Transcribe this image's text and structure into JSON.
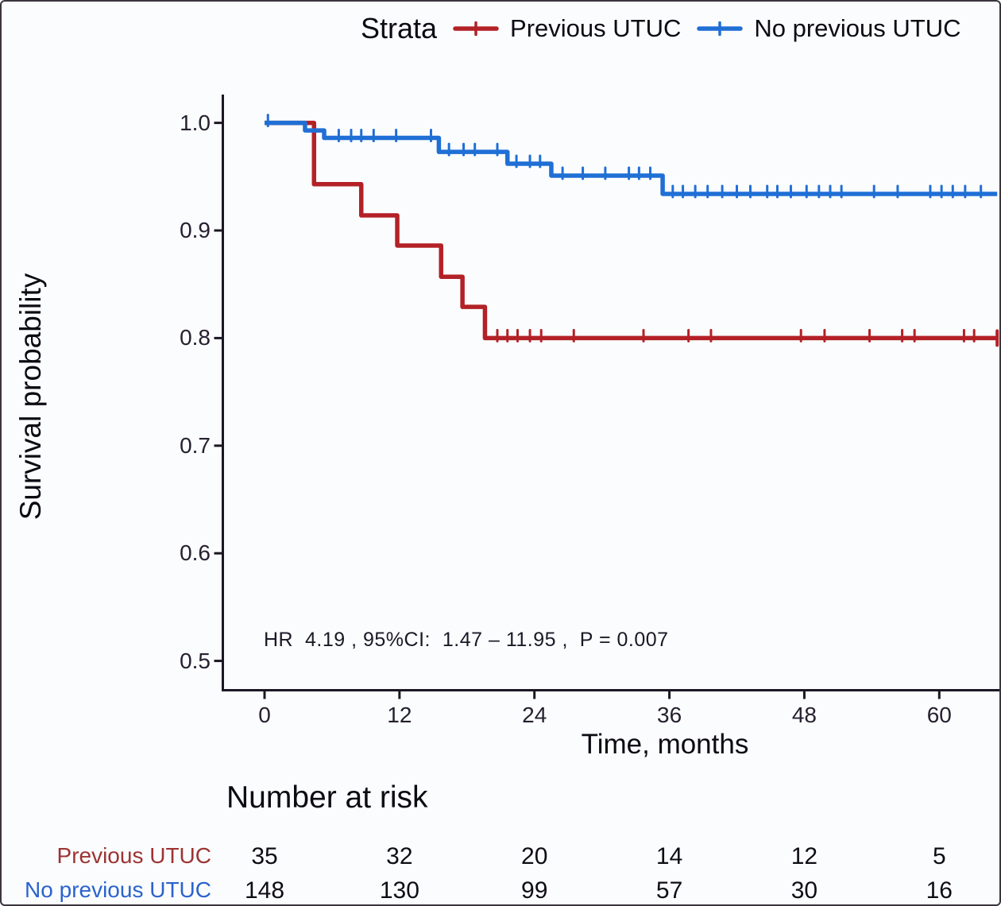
{
  "figure": {
    "background": "#fbfcfe",
    "border_color": "#3a353e"
  },
  "legend": {
    "title": "Strata",
    "items": [
      {
        "label": "Previous UTUC",
        "color": "#b32127"
      },
      {
        "label": "No previous UTUC",
        "color": "#1f6fd5"
      }
    ]
  },
  "axes": {
    "y_title": "Survival probability",
    "x_title": "Time, months",
    "axis_color": "#1c1723",
    "tick_label_color": "#262030"
  },
  "annotation": {
    "text": "HR  4.19 , 95%CI:  1.47 – 11.95 ,  P = 0.007"
  },
  "risk_table": {
    "title": "Number at risk",
    "rows": [
      {
        "label": "Previous UTUC",
        "label_color": "#9c3432",
        "counts": [
          "35",
          "32",
          "20",
          "14",
          "12",
          "5"
        ]
      },
      {
        "label": "No previous UTUC",
        "label_color": "#2c63cb",
        "counts": [
          "148",
          "130",
          "99",
          "57",
          "30",
          "16"
        ]
      }
    ]
  },
  "chart_data": {
    "type": "line",
    "subtype": "kaplan-meier-step",
    "title": "",
    "xlabel": "Time, months",
    "ylabel": "Survival probability",
    "xlim": [
      0,
      65.2
    ],
    "ylim": [
      0.48,
      1.02
    ],
    "x_ticks": [
      0,
      12,
      24,
      36,
      48,
      60
    ],
    "y_ticks": [
      "1.0",
      "0.9",
      "0.8",
      "0.7",
      "0.6",
      "0.5"
    ],
    "y_tick_values": [
      1.0,
      0.9,
      0.8,
      0.7,
      0.6,
      0.5
    ],
    "grid": false,
    "legend_position": "top",
    "hr_annotation": "HR  4.19 , 95%CI:  1.47 – 11.95 ,  P = 0.007",
    "series": [
      {
        "name": "Previous UTUC",
        "color": "#b32127",
        "steps": [
          [
            0,
            1.0
          ],
          [
            4.4,
            0.943
          ],
          [
            8.6,
            0.914
          ],
          [
            11.8,
            0.886
          ],
          [
            15.7,
            0.857
          ],
          [
            17.6,
            0.829
          ],
          [
            19.6,
            0.8
          ]
        ],
        "end_x": 65.15,
        "end_cap": true,
        "censors": [
          [
            20.7,
            0.8
          ],
          [
            21.6,
            0.8
          ],
          [
            22.5,
            0.8
          ],
          [
            23.6,
            0.8
          ],
          [
            24.6,
            0.8
          ],
          [
            27.5,
            0.8
          ],
          [
            33.7,
            0.8
          ],
          [
            37.7,
            0.8
          ],
          [
            39.7,
            0.8
          ],
          [
            47.7,
            0.8
          ],
          [
            49.8,
            0.8
          ],
          [
            53.8,
            0.8
          ],
          [
            56.7,
            0.8
          ],
          [
            57.8,
            0.8
          ],
          [
            62.2,
            0.8
          ],
          [
            63.1,
            0.8
          ]
        ]
      },
      {
        "name": "No previous UTUC",
        "color": "#1f6fd5",
        "steps": [
          [
            0,
            1.0
          ],
          [
            3.6,
            0.993
          ],
          [
            5.3,
            0.986
          ],
          [
            15.5,
            0.973
          ],
          [
            21.6,
            0.962
          ],
          [
            25.5,
            0.951
          ],
          [
            35.4,
            0.934
          ]
        ],
        "end_x": 65.15,
        "end_cap": false,
        "censors": [
          [
            0.3,
            1.0
          ],
          [
            6.6,
            0.986
          ],
          [
            7.7,
            0.986
          ],
          [
            8.6,
            0.986
          ],
          [
            9.7,
            0.986
          ],
          [
            11.7,
            0.986
          ],
          [
            14.8,
            0.986
          ],
          [
            16.4,
            0.973
          ],
          [
            17.7,
            0.973
          ],
          [
            18.7,
            0.973
          ],
          [
            20.7,
            0.973
          ],
          [
            22.4,
            0.962
          ],
          [
            23.6,
            0.962
          ],
          [
            24.5,
            0.962
          ],
          [
            26.5,
            0.951
          ],
          [
            28.3,
            0.951
          ],
          [
            30.3,
            0.951
          ],
          [
            32.4,
            0.951
          ],
          [
            33.3,
            0.951
          ],
          [
            34.3,
            0.951
          ],
          [
            36.3,
            0.934
          ],
          [
            37.2,
            0.934
          ],
          [
            38.3,
            0.934
          ],
          [
            39.4,
            0.934
          ],
          [
            40.7,
            0.934
          ],
          [
            42.0,
            0.934
          ],
          [
            43.2,
            0.934
          ],
          [
            44.7,
            0.934
          ],
          [
            45.6,
            0.934
          ],
          [
            46.8,
            0.934
          ],
          [
            48.2,
            0.934
          ],
          [
            49.3,
            0.934
          ],
          [
            50.3,
            0.934
          ],
          [
            51.3,
            0.934
          ],
          [
            54.2,
            0.934
          ],
          [
            56.3,
            0.934
          ],
          [
            59.2,
            0.934
          ],
          [
            60.2,
            0.934
          ],
          [
            61.2,
            0.934
          ],
          [
            62.3,
            0.934
          ],
          [
            63.7,
            0.934
          ]
        ]
      }
    ],
    "number_at_risk": {
      "times": [
        0,
        12,
        24,
        36,
        48,
        60
      ],
      "rows": [
        {
          "name": "Previous UTUC",
          "counts": [
            35,
            32,
            20,
            14,
            12,
            5
          ]
        },
        {
          "name": "No previous UTUC",
          "counts": [
            148,
            130,
            99,
            57,
            30,
            16
          ]
        }
      ]
    }
  }
}
